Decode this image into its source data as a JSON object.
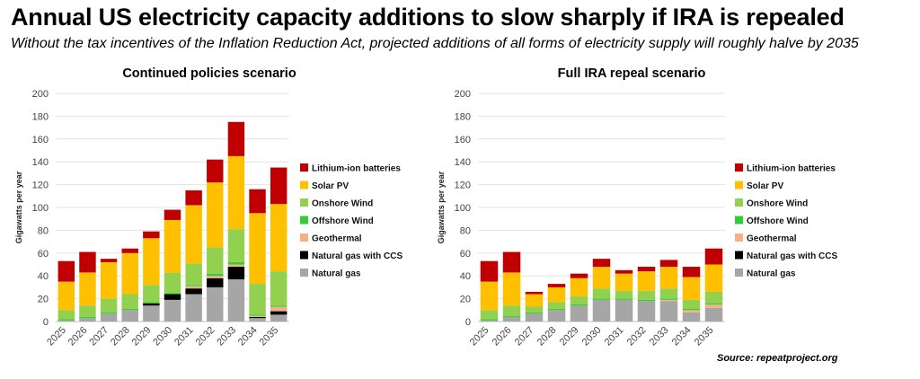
{
  "title": "Annual US electricity capacity additions to slow sharply if IRA is repealed",
  "subtitle": "Without the tax incentives of the Inflation Reduction Act, projected additions of all forms of electricity supply will roughly halve by 2035",
  "source": "Source: repeatproject.org",
  "colors": {
    "Natural gas": "#a6a6a6",
    "Natural gas with CCS": "#000000",
    "Geothermal": "#f4b183",
    "Offshore Wind": "#33cc33",
    "Onshore Wind": "#92d050",
    "Solar PV": "#ffc000",
    "Lithium-ion batteries": "#c00000"
  },
  "chart_data": [
    {
      "type": "bar",
      "stacked": true,
      "title": "Continued policies scenario",
      "ylabel": "Gigawatts per year",
      "xlabel": "",
      "ylim": [
        0,
        200
      ],
      "yticks": [
        "0",
        "20",
        "40",
        "60",
        "80",
        "100",
        "120",
        "140",
        "160",
        "180",
        "200"
      ],
      "categories": [
        "2025",
        "2026",
        "2027",
        "2028",
        "2029",
        "2030",
        "2031",
        "2032",
        "2033",
        "2034",
        "2035"
      ],
      "legend_order": [
        "Lithium-ion batteries",
        "Solar PV",
        "Onshore Wind",
        "Offshore Wind",
        "Geothermal",
        "Natural gas with CCS",
        "Natural gas"
      ],
      "series": [
        {
          "name": "Natural gas",
          "values": [
            1,
            3,
            7,
            10,
            14,
            19,
            24,
            30,
            37,
            3,
            6
          ]
        },
        {
          "name": "Natural gas with CCS",
          "values": [
            0,
            0,
            0,
            0,
            2,
            5,
            5,
            8,
            11,
            1,
            3
          ]
        },
        {
          "name": "Geothermal",
          "values": [
            0,
            0,
            0,
            0,
            0,
            0,
            2,
            2,
            2,
            1,
            4
          ]
        },
        {
          "name": "Offshore Wind",
          "values": [
            1,
            1,
            1,
            1,
            1,
            1,
            1,
            2,
            2,
            1,
            1
          ]
        },
        {
          "name": "Onshore Wind",
          "values": [
            8,
            10,
            12,
            13,
            15,
            18,
            19,
            23,
            29,
            27,
            30
          ]
        },
        {
          "name": "Solar PV",
          "values": [
            25,
            29,
            32,
            36,
            41,
            46,
            51,
            57,
            64,
            62,
            59
          ]
        },
        {
          "name": "Lithium-ion batteries",
          "values": [
            18,
            18,
            3,
            4,
            6,
            9,
            13,
            20,
            30,
            21,
            32
          ]
        }
      ]
    },
    {
      "type": "bar",
      "stacked": true,
      "title": "Full IRA repeal scenario",
      "ylabel": "Gigawatts per year",
      "xlabel": "",
      "ylim": [
        0,
        200
      ],
      "yticks": [
        "0",
        "20",
        "40",
        "60",
        "80",
        "100",
        "120",
        "140",
        "160",
        "180",
        "200"
      ],
      "categories": [
        "2025",
        "2026",
        "2027",
        "2028",
        "2029",
        "2030",
        "2031",
        "2032",
        "2033",
        "2034",
        "2035"
      ],
      "legend_order": [
        "Lithium-ion batteries",
        "Solar PV",
        "Onshore Wind",
        "Offshore Wind",
        "Geothermal",
        "Natural gas with CCS",
        "Natural gas"
      ],
      "series": [
        {
          "name": "Natural gas",
          "values": [
            1,
            4,
            7,
            10,
            14,
            19,
            19,
            18,
            18,
            8,
            12
          ]
        },
        {
          "name": "Natural gas with CCS",
          "values": [
            0,
            0,
            0,
            0,
            0,
            0,
            0,
            0,
            0,
            0,
            0
          ]
        },
        {
          "name": "Geothermal",
          "values": [
            0,
            0,
            0,
            0,
            0,
            0,
            0,
            0,
            1,
            2,
            3
          ]
        },
        {
          "name": "Offshore Wind",
          "values": [
            1,
            1,
            1,
            1,
            1,
            1,
            1,
            1,
            1,
            1,
            1
          ]
        },
        {
          "name": "Onshore Wind",
          "values": [
            8,
            9,
            5,
            6,
            7,
            9,
            7,
            8,
            9,
            8,
            10
          ]
        },
        {
          "name": "Solar PV",
          "values": [
            25,
            29,
            11,
            13,
            16,
            19,
            15,
            17,
            19,
            20,
            24
          ]
        },
        {
          "name": "Lithium-ion batteries",
          "values": [
            18,
            18,
            2,
            3,
            4,
            7,
            3,
            4,
            6,
            9,
            14
          ]
        }
      ]
    }
  ]
}
